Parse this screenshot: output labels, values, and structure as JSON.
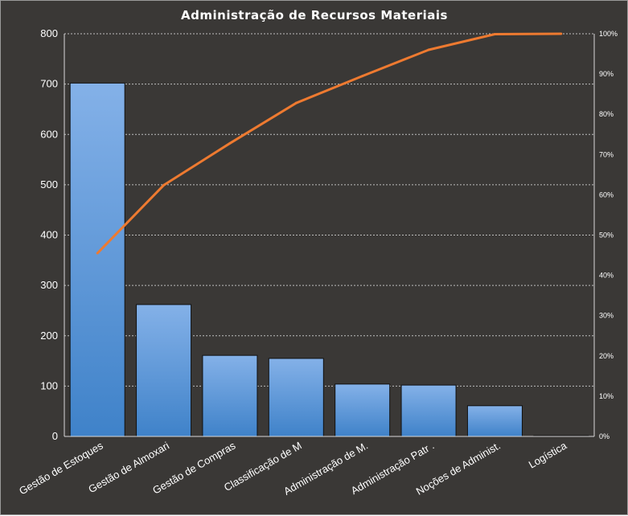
{
  "chart_data": {
    "type": "bar",
    "title": "Administração  de Recursos  Materiais",
    "categories": [
      "Gestão de Estoques",
      "Gestão de Almoxari",
      "Gestão de Compras",
      "Classificação de M",
      "Administração de M.",
      "Administração Patr .",
      "Noções de Administ.",
      "Logística"
    ],
    "series": [
      {
        "values": [
          702,
          262,
          161,
          155,
          104,
          102,
          61,
          1
        ]
      },
      {
        "type": "line",
        "axis": "secondary",
        "values": [
          45.5,
          62.4,
          72.8,
          82.8,
          89.5,
          96.0,
          99.9,
          100
        ]
      }
    ],
    "ylim": [
      0,
      800
    ],
    "yticks": [
      "0",
      "100",
      "200",
      "300",
      "400",
      "500",
      "600",
      "700",
      "800"
    ],
    "y2lim": [
      0,
      100
    ],
    "y2ticks": [
      "0%",
      "10%",
      "20%",
      "30%",
      "40%",
      "50%",
      "60%",
      "70%",
      "80%",
      "90%",
      "100%"
    ],
    "grid": true,
    "legend": "none",
    "colors": {
      "background": "#3a3836",
      "bar_top": "#84b1e8",
      "bar_bottom": "#3f82c9",
      "line": "#ee7a30",
      "text": "#ffffff"
    }
  }
}
